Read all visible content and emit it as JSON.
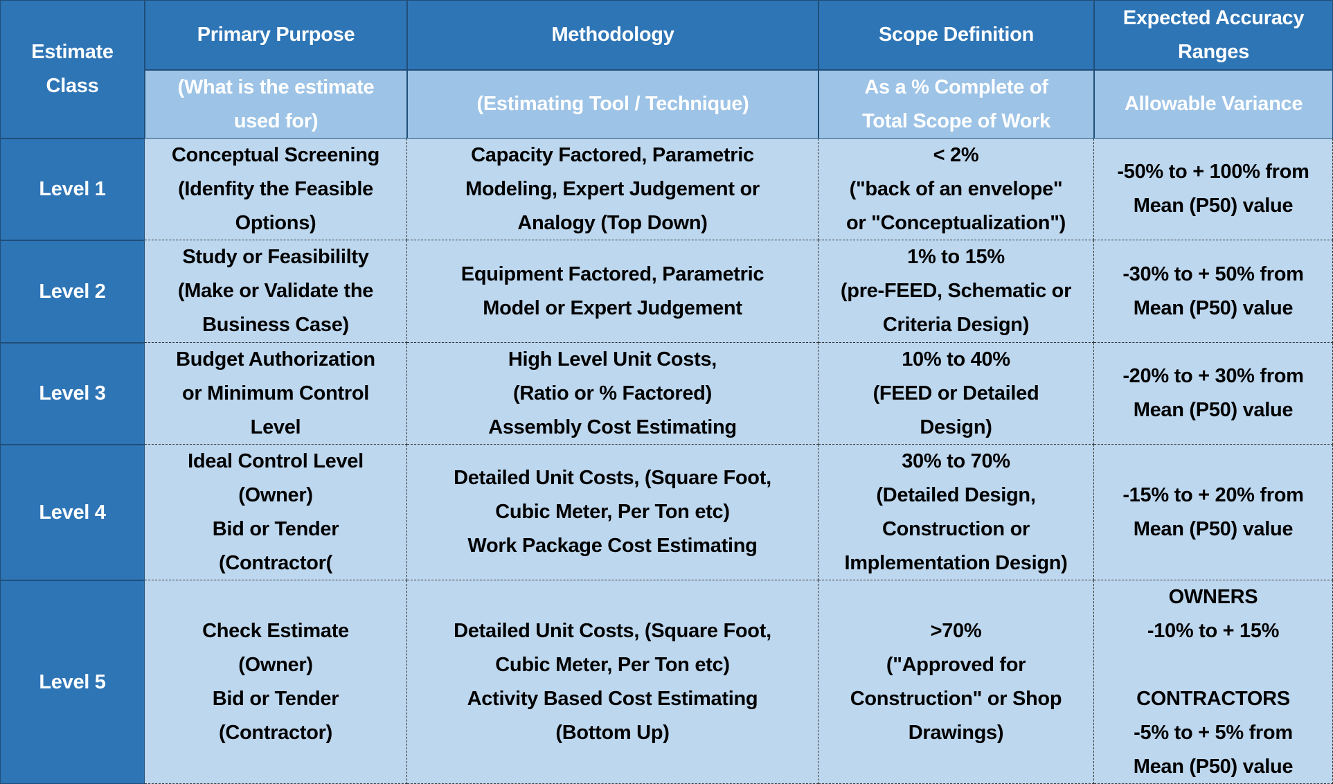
{
  "header": {
    "estimate_class": [
      "Estimate",
      "Class"
    ],
    "columns": [
      {
        "title": [
          "Primary Purpose"
        ],
        "subtitle": [
          "(What is the estimate",
          "used for)"
        ]
      },
      {
        "title": [
          "Methodology"
        ],
        "subtitle": [
          "(Estimating Tool / Technique)"
        ]
      },
      {
        "title": [
          "Scope Definition"
        ],
        "subtitle": [
          "As a % Complete of",
          "Total Scope of Work"
        ]
      },
      {
        "title": [
          "Expected Accuracy",
          "Ranges"
        ],
        "subtitle": [
          "Allowable Variance"
        ]
      }
    ]
  },
  "rows": [
    {
      "level": "Level 1",
      "cells": [
        [
          [
            "Conceptual Screening",
            "(Idenfity the Feasible",
            "Options)"
          ]
        ],
        [
          [
            "Capacity Factored, Parametric",
            "Modeling, Expert Judgement or",
            "Analogy (Top Down)"
          ]
        ],
        [
          [
            "< 2%",
            "(\"back of an envelope\"",
            "or \"Conceptualization\")"
          ]
        ],
        [
          [
            "-50% to + 100% from",
            "Mean (P50) value"
          ]
        ]
      ]
    },
    {
      "level": "Level 2",
      "cells": [
        [
          [
            "Study or Feasibililty",
            "(Make or Validate the",
            "Business Case)"
          ]
        ],
        [
          [
            "Equipment Factored, Parametric",
            "Model or Expert Judgement"
          ]
        ],
        [
          [
            "1% to 15%",
            "(pre-FEED, Schematic or",
            "Criteria Design)"
          ]
        ],
        [
          [
            "-30% to + 50% from",
            "Mean (P50) value"
          ]
        ]
      ]
    },
    {
      "level": "Level 3",
      "cells": [
        [
          [
            "Budget Authorization",
            "or Minimum Control",
            "Level"
          ]
        ],
        [
          [
            "High Level Unit Costs,",
            "(Ratio or %  Factored)",
            "Assembly Cost Estimating"
          ]
        ],
        [
          [
            "10% to 40%",
            "(FEED or Detailed",
            "Design)"
          ]
        ],
        [
          [
            "-20% to + 30% from",
            "Mean (P50) value"
          ]
        ]
      ]
    },
    {
      "level": "Level 4",
      "cells": [
        [
          [
            "Ideal Control Level",
            "(Owner)",
            "Bid or Tender",
            "(Contractor("
          ]
        ],
        [
          [
            "Detailed Unit Costs, (Square Foot,",
            "Cubic Meter, Per Ton etc)",
            "Work Package Cost Estimating"
          ]
        ],
        [
          [
            "30% to 70%",
            "(Detailed Design,",
            "Construction or",
            "Implementation Design)"
          ]
        ],
        [
          [
            "-15% to + 20% from",
            "Mean (P50) value"
          ]
        ]
      ]
    },
    {
      "level": "Level 5",
      "cells": [
        [
          [
            "Check Estimate",
            "(Owner)",
            "Bid or Tender",
            "(Contractor)"
          ]
        ],
        [
          [
            "Detailed Unit Costs, (Square Foot,",
            "Cubic Meter, Per Ton etc)",
            "Activity Based Cost Estimating",
            "(Bottom Up)"
          ]
        ],
        [
          [
            ">70%",
            "(\"Approved for",
            "Construction\" or Shop",
            "Drawings)"
          ]
        ],
        [
          [
            "OWNERS",
            "-10% to + 15%"
          ],
          [
            "CONTRACTORS",
            "-5% to + 5%  from",
            "Mean (P50) value"
          ]
        ]
      ]
    }
  ]
}
